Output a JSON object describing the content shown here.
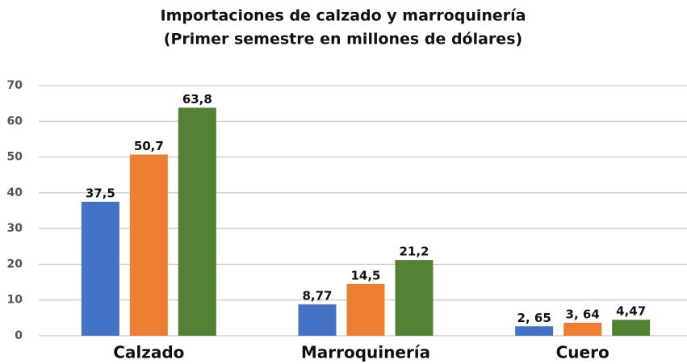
{
  "chart_data": {
    "type": "bar",
    "title": "Importaciones de calzado y marroquinería",
    "subtitle": "(Primer semestre en millones de dólares)",
    "categories": [
      "Calzado",
      "Marroquinería",
      "Cuero"
    ],
    "series": [
      {
        "color": "#4472c4",
        "values": [
          37.5,
          8.77,
          2.65
        ],
        "value_labels": [
          "37,5",
          "8,77",
          "2, 65"
        ]
      },
      {
        "color": "#ed7d31",
        "values": [
          50.7,
          14.5,
          3.64
        ],
        "value_labels": [
          "50,7",
          "14,5",
          "3, 64"
        ]
      },
      {
        "color": "#548235",
        "values": [
          63.8,
          21.2,
          4.47
        ],
        "value_labels": [
          "63,8",
          "21,2",
          "4,47"
        ]
      }
    ],
    "ylim": [
      0,
      70
    ],
    "yticks": [
      0,
      10,
      20,
      30,
      40,
      50,
      60,
      70
    ],
    "grid": true
  }
}
